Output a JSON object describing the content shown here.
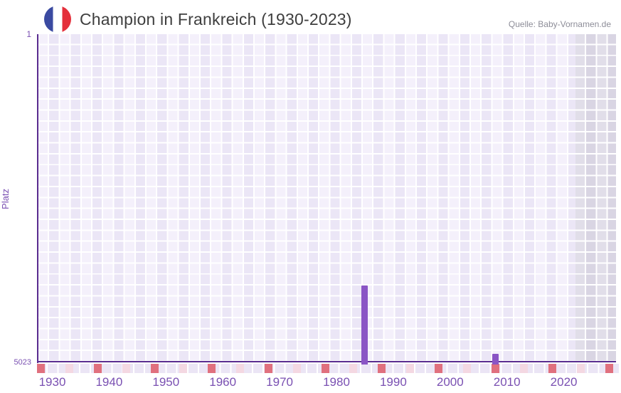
{
  "header": {
    "title": "Champion in Frankreich (1930-2023)",
    "source": "Quelle: Baby-Vornamen.de",
    "flag": "france-flag"
  },
  "chart_data": {
    "type": "bar",
    "title": "Champion in Frankreich (1930-2023)",
    "ylabel": "Platz",
    "y_axis_top_tick": "1",
    "y_axis_bottom_tick": "5023",
    "ylim": [
      1,
      5023
    ],
    "y_inverted": true,
    "x_ticks": [
      "1930",
      "1940",
      "1950",
      "1960",
      "1970",
      "1980",
      "1990",
      "2000",
      "2010",
      "2020"
    ],
    "x_year_range": [
      1927,
      2029
    ],
    "grid": true,
    "legend": false,
    "bars": [
      {
        "year": 1985,
        "platz": 3855
      },
      {
        "year": 2008,
        "platz": 4900
      }
    ],
    "highlight_band": {
      "from_year": 2022,
      "to_plot_edge": true
    },
    "bottom_marker_pattern": {
      "start_year": 1928,
      "end_year": 2028,
      "step_years": 5,
      "alternating_colors": [
        "red",
        "pink"
      ]
    },
    "palette": {
      "bar": "#8a55c5",
      "axis_line": "#5a2d90",
      "axis_text": "#7a50b2",
      "title_text": "#3e3e3e",
      "source_text": "#8d8d98",
      "marker_red": "#e0707e",
      "marker_pink": "#f4d8e2",
      "grid_light": "#f4f0fb",
      "grid_dark": "#ebe6f6",
      "band_light": "#e1dee9",
      "band_dark": "#d9d5e3",
      "strip_cell": "#ebe5f5"
    }
  }
}
